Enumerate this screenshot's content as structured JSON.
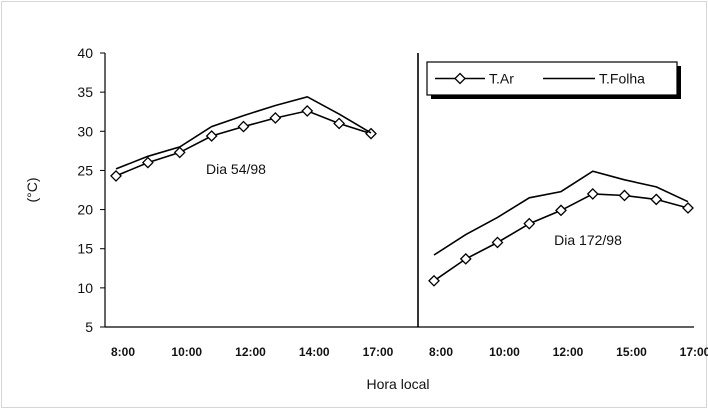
{
  "chart_data": {
    "type": "line",
    "ylabel": "(°C)",
    "xlabel": "Hora local",
    "ylim": [
      5,
      40
    ],
    "yticks": [
      "40",
      "35",
      "30",
      "25",
      "20",
      "15",
      "10",
      "5"
    ],
    "grid": false,
    "legend": {
      "placement": "top-right of right panel, boxed with shadow",
      "entries": [
        {
          "name": "T.Ar",
          "marker": "diamond"
        },
        {
          "name": "T.Folha",
          "marker": "none"
        }
      ]
    },
    "panels": [
      {
        "label": "Dia 54/98",
        "tick_labels": [
          "8:00",
          "10:00",
          "12:00",
          "14:00",
          "17:00"
        ],
        "series": [
          {
            "name": "T.Ar",
            "values": [
              24.3,
              26.0,
              27.3,
              29.4,
              30.6,
              31.7,
              32.6,
              31.0,
              29.7
            ]
          },
          {
            "name": "T.Folha",
            "values": [
              25.2,
              26.8,
              28.0,
              30.6,
              32.0,
              33.3,
              34.4,
              32.2,
              29.8
            ]
          }
        ]
      },
      {
        "label": "Dia 172/98",
        "tick_labels": [
          "8:00",
          "10:00",
          "12:00",
          "15:00",
          "17:00"
        ],
        "series": [
          {
            "name": "T.Ar",
            "values": [
              10.9,
              13.7,
              15.8,
              18.2,
              19.9,
              22.0,
              21.8,
              21.3,
              20.2
            ]
          },
          {
            "name": "T.Folha",
            "values": [
              14.2,
              16.8,
              19.0,
              21.5,
              22.3,
              24.9,
              23.8,
              22.9,
              21.0
            ]
          }
        ]
      }
    ]
  }
}
